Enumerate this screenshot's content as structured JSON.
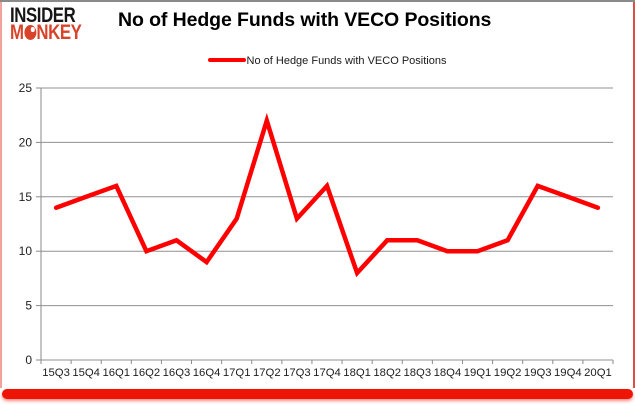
{
  "logo": {
    "line1": "INSIDER",
    "line2_m": "M",
    "line2_rest": "NKEY",
    "top_color": "#161616",
    "bottom_color": "#d8432a"
  },
  "header": {
    "title": "No of Hedge Funds with VECO Positions"
  },
  "legend": {
    "label": "No of Hedge Funds with VECO Positions",
    "line_color": "#ff0000"
  },
  "chart_data": {
    "type": "line",
    "title": "No of Hedge Funds with VECO Positions",
    "categories": [
      "15Q3",
      "15Q4",
      "16Q1",
      "16Q2",
      "16Q3",
      "16Q4",
      "17Q1",
      "17Q2",
      "17Q3",
      "17Q4",
      "18Q1",
      "18Q2",
      "18Q3",
      "18Q4",
      "19Q1",
      "19Q2",
      "19Q3",
      "19Q4",
      "20Q1"
    ],
    "series": [
      {
        "name": "No of Hedge Funds with VECO Positions",
        "color": "#ff0000",
        "values": [
          14,
          15,
          16,
          10,
          11,
          9,
          13,
          22,
          13,
          16,
          8,
          11,
          11,
          10,
          10,
          11,
          16,
          15,
          14
        ]
      }
    ],
    "xlabel": "",
    "ylabel": "",
    "ylim": [
      0,
      25
    ],
    "yticks": [
      0,
      5,
      10,
      15,
      20,
      25
    ],
    "grid": "horizontal",
    "legend_position": "top-center",
    "grid_color": "#909090",
    "axis_color": "#8a8a8a",
    "tick_label_color": "#1e1e1e"
  },
  "frame": {
    "border_top": "#8a8a8a",
    "border_left": "#efa39b",
    "border_right": "#dd4f43",
    "bottom_bar": "#ee1506"
  }
}
